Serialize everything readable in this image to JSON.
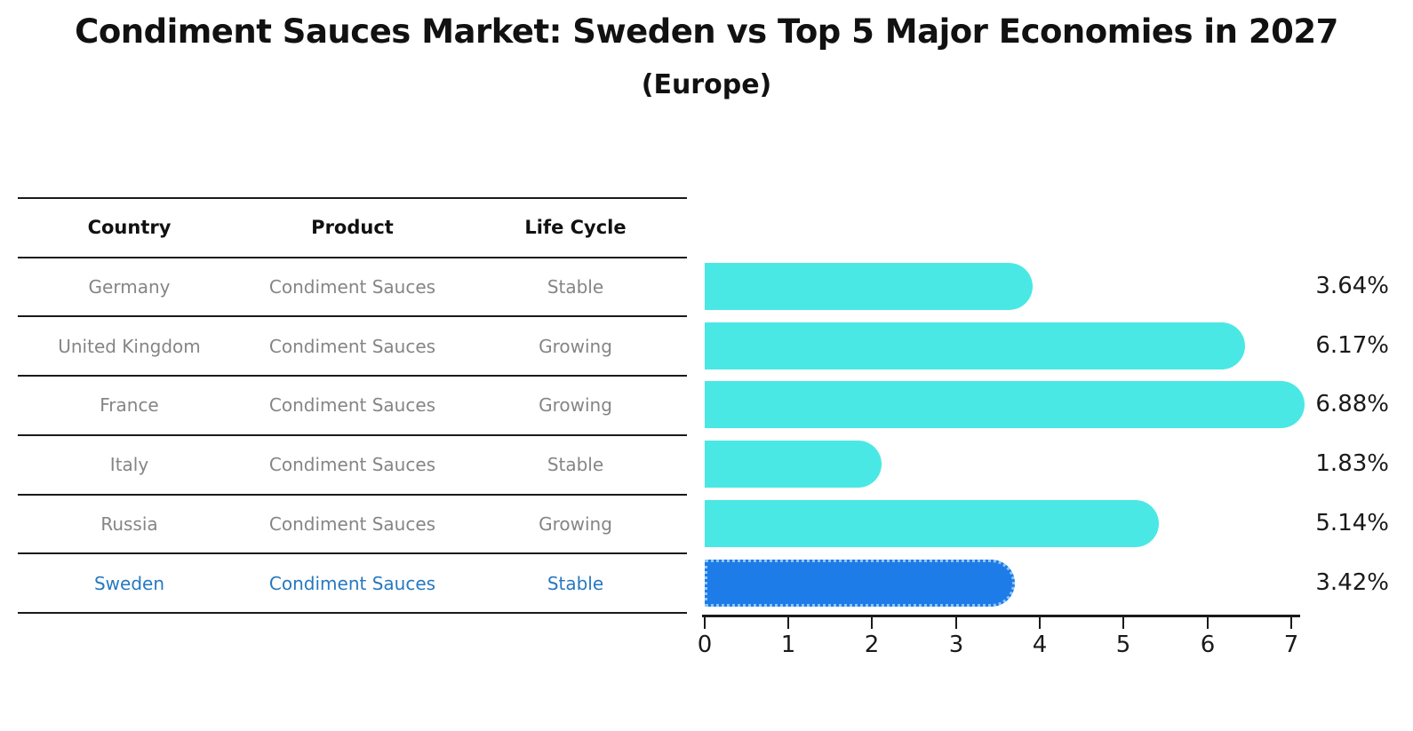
{
  "title": "Condiment Sauces Market: Sweden vs Top 5 Major Economies in 2027",
  "subtitle": "(Europe)",
  "table": {
    "headers": [
      "Country",
      "Product",
      "Life Cycle"
    ],
    "rows": [
      {
        "country": "Germany",
        "product": "Condiment Sauces",
        "life_cycle": "Stable"
      },
      {
        "country": "United Kingdom",
        "product": "Condiment Sauces",
        "life_cycle": "Growing"
      },
      {
        "country": "France",
        "product": "Condiment Sauces",
        "life_cycle": "Growing"
      },
      {
        "country": "Italy",
        "product": "Condiment Sauces",
        "life_cycle": "Stable"
      },
      {
        "country": "Russia",
        "product": "Condiment Sauces",
        "life_cycle": "Growing"
      },
      {
        "country": "Sweden",
        "product": "Condiment Sauces",
        "life_cycle": "Stable"
      }
    ]
  },
  "chart_data": {
    "type": "bar",
    "orientation": "horizontal",
    "title": "Condiment Sauces Market: Sweden vs Top 5 Major Economies in 2027",
    "subtitle": "(Europe)",
    "categories": [
      "Germany",
      "United Kingdom",
      "France",
      "Italy",
      "Russia",
      "Sweden"
    ],
    "values": [
      3.64,
      6.17,
      6.88,
      1.83,
      5.14,
      3.42
    ],
    "value_labels": [
      "3.64%",
      "6.17%",
      "6.88%",
      "1.83%",
      "5.14%",
      "3.42%"
    ],
    "unit": "%",
    "xlim": [
      0,
      7.3
    ],
    "x_tick_labels": [
      "0",
      "1",
      "2",
      "3",
      "4",
      "5",
      "6",
      "7"
    ],
    "grid": false,
    "legend": "none",
    "highlight_index": 5
  },
  "colors": {
    "bar_color": "#4AE8E4",
    "highlight_bar_color": "#1E7CE8",
    "highlight_border_color": "#8FC6F7",
    "highlight_text_color": "#2678C0",
    "muted_text_color": "#858585",
    "axis_color": "#1a1a1a",
    "title_color": "#111111"
  }
}
